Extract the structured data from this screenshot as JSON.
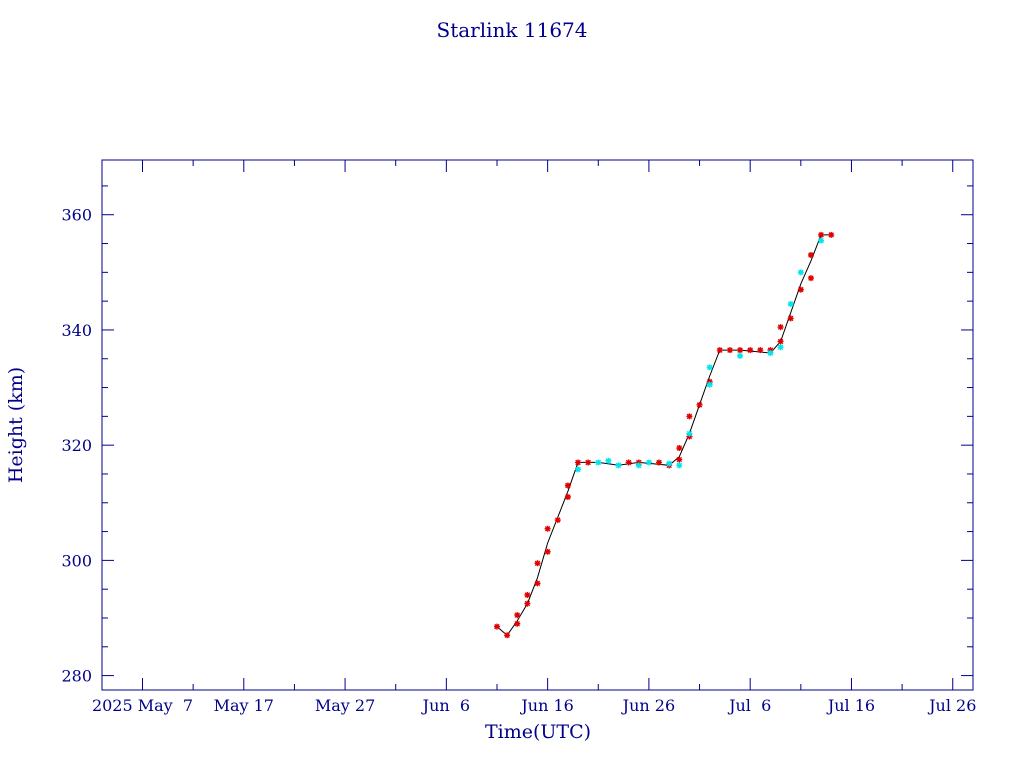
{
  "chart_data": {
    "type": "line",
    "title": "Starlink 11674",
    "xlabel": "Time(UTC)",
    "ylabel": "Height (km)",
    "x_axis": {
      "type": "date",
      "range": [
        "2025-05-03",
        "2025-07-28"
      ],
      "ticks": [
        {
          "date": "2025-05-07",
          "label": "2025 May  7"
        },
        {
          "date": "2025-05-17",
          "label": "May 17"
        },
        {
          "date": "2025-05-27",
          "label": "May 27"
        },
        {
          "date": "2025-06-06",
          "label": "Jun  6"
        },
        {
          "date": "2025-06-16",
          "label": "Jun 16"
        },
        {
          "date": "2025-06-26",
          "label": "Jun 26"
        },
        {
          "date": "2025-07-06",
          "label": "Jul  6"
        },
        {
          "date": "2025-07-16",
          "label": "Jul 16"
        },
        {
          "date": "2025-07-26",
          "label": "Jul 26"
        }
      ]
    },
    "y_axis": {
      "range": [
        277.5,
        369.5
      ],
      "ticks": [
        280,
        300,
        320,
        340,
        360
      ]
    },
    "grid": false,
    "colors": {
      "frame": "#00008b",
      "line": "#000000",
      "marker_primary": "#e00000",
      "marker_secondary": "#00e5ee"
    },
    "series": [
      {
        "color": "#e00000",
        "marker": "star",
        "points": [
          [
            "2025-06-11",
            288.5
          ],
          [
            "2025-06-12",
            287.0
          ],
          [
            "2025-06-13",
            289.0
          ],
          [
            "2025-06-13",
            290.5
          ],
          [
            "2025-06-14",
            292.5
          ],
          [
            "2025-06-14",
            294.0
          ],
          [
            "2025-06-15",
            296.0
          ],
          [
            "2025-06-15",
            299.5
          ],
          [
            "2025-06-16",
            301.5
          ],
          [
            "2025-06-16",
            305.5
          ],
          [
            "2025-06-17",
            307.0
          ],
          [
            "2025-06-18",
            311.0
          ],
          [
            "2025-06-18",
            313.0
          ],
          [
            "2025-06-19",
            317.0
          ],
          [
            "2025-06-20",
            317.0
          ],
          [
            "2025-06-24",
            317.0
          ],
          [
            "2025-06-25",
            317.0
          ],
          [
            "2025-06-27",
            317.0
          ],
          [
            "2025-06-28",
            316.5
          ],
          [
            "2025-06-29",
            317.5
          ],
          [
            "2025-06-29",
            319.5
          ],
          [
            "2025-06-30",
            321.5
          ],
          [
            "2025-06-30",
            325.0
          ],
          [
            "2025-07-01",
            327.0
          ],
          [
            "2025-07-02",
            331.0
          ],
          [
            "2025-07-03",
            336.5
          ],
          [
            "2025-07-04",
            336.5
          ],
          [
            "2025-07-05",
            336.5
          ],
          [
            "2025-07-06",
            336.5
          ],
          [
            "2025-07-07",
            336.5
          ],
          [
            "2025-07-08",
            336.5
          ],
          [
            "2025-07-09",
            338.0
          ],
          [
            "2025-07-09",
            340.5
          ],
          [
            "2025-07-10",
            342.0
          ],
          [
            "2025-07-11",
            347.0
          ],
          [
            "2025-07-12",
            349.0
          ],
          [
            "2025-07-12",
            353.0
          ],
          [
            "2025-07-13",
            356.5
          ],
          [
            "2025-07-14",
            356.5
          ]
        ]
      },
      {
        "color": "#00e5ee",
        "marker": "star",
        "points": [
          [
            "2025-06-19",
            315.8
          ],
          [
            "2025-06-21",
            317.0
          ],
          [
            "2025-06-22",
            317.3
          ],
          [
            "2025-06-23",
            316.5
          ],
          [
            "2025-06-25",
            316.5
          ],
          [
            "2025-06-26",
            317.0
          ],
          [
            "2025-06-28",
            316.8
          ],
          [
            "2025-06-29",
            316.5
          ],
          [
            "2025-06-30",
            322.0
          ],
          [
            "2025-07-02",
            330.5
          ],
          [
            "2025-07-02",
            333.5
          ],
          [
            "2025-07-05",
            335.5
          ],
          [
            "2025-07-08",
            336.0
          ],
          [
            "2025-07-09",
            337.0
          ],
          [
            "2025-07-10",
            344.5
          ],
          [
            "2025-07-11",
            350.0
          ],
          [
            "2025-07-13",
            355.5
          ]
        ]
      }
    ],
    "trajectory": [
      [
        "2025-06-11",
        288.5
      ],
      [
        "2025-06-12",
        287.0
      ],
      [
        "2025-06-13",
        289.5
      ],
      [
        "2025-06-14",
        292.5
      ],
      [
        "2025-06-15",
        297.0
      ],
      [
        "2025-06-16",
        303.0
      ],
      [
        "2025-06-17",
        307.5
      ],
      [
        "2025-06-18",
        312.0
      ],
      [
        "2025-06-19",
        317.0
      ],
      [
        "2025-06-21",
        317.0
      ],
      [
        "2025-06-23",
        316.5
      ],
      [
        "2025-06-25",
        317.0
      ],
      [
        "2025-06-28",
        316.5
      ],
      [
        "2025-06-29",
        318.0
      ],
      [
        "2025-06-30",
        322.0
      ],
      [
        "2025-07-01",
        327.0
      ],
      [
        "2025-07-02",
        332.0
      ],
      [
        "2025-07-03",
        336.5
      ],
      [
        "2025-07-05",
        336.5
      ],
      [
        "2025-07-08",
        336.0
      ],
      [
        "2025-07-09",
        338.0
      ],
      [
        "2025-07-10",
        343.0
      ],
      [
        "2025-07-11",
        348.0
      ],
      [
        "2025-07-12",
        352.0
      ],
      [
        "2025-07-13",
        356.5
      ],
      [
        "2025-07-14",
        356.5
      ]
    ]
  }
}
